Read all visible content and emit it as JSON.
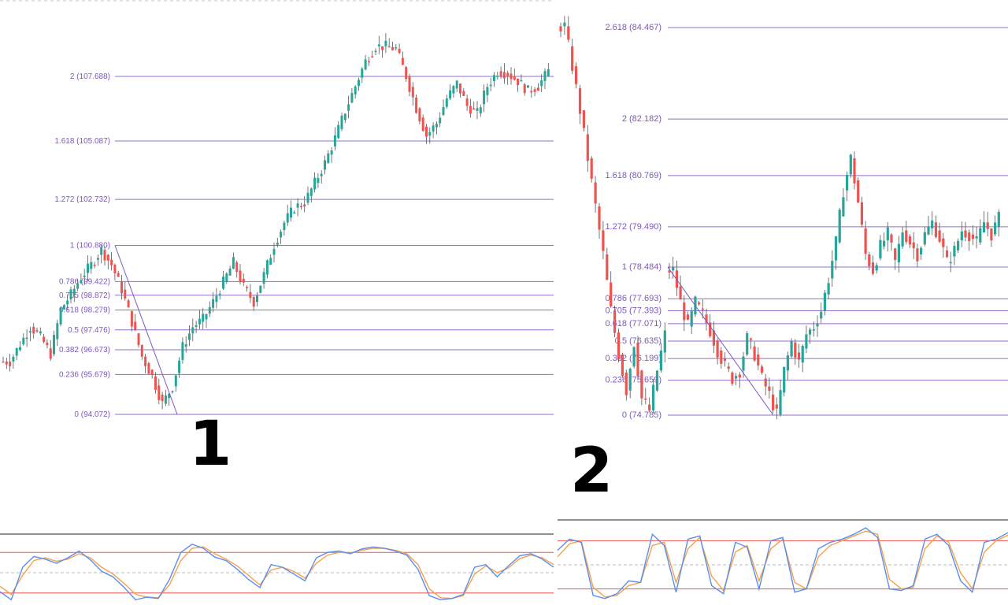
{
  "colors": {
    "up": "#26a69a",
    "down": "#ef5350",
    "fib_line": "#7e57c2",
    "stoch_k": "#5b8def",
    "stoch_d": "#f5a04a",
    "stoch_band": "#ef5350"
  },
  "chart_data": [
    {
      "type": "candlestick",
      "panel_label": "1",
      "fib_levels": [
        {
          "ratio": "2",
          "price": 107.688
        },
        {
          "ratio": "1.618",
          "price": 105.087
        },
        {
          "ratio": "1.272",
          "price": 102.732
        },
        {
          "ratio": "1",
          "price": 100.88
        },
        {
          "ratio": "0.786",
          "price": 99.422
        },
        {
          "ratio": "0.705",
          "price": 98.872
        },
        {
          "ratio": "0.618",
          "price": 98.279
        },
        {
          "ratio": "0.5",
          "price": 97.476
        },
        {
          "ratio": "0.382",
          "price": 96.673
        },
        {
          "ratio": "0.236",
          "price": 95.679
        },
        {
          "ratio": "0",
          "price": 94.072
        }
      ],
      "fib_labels": [
        "2 (107.688)",
        "1.618 (105.087)",
        "1.272 (102.732)",
        "1 (100.880)",
        "0.786 (99.422)",
        "0.705 (98.872)",
        "0.618 (98.279)",
        "0.5 (97.476)",
        "0.382 (96.673)",
        "0.236 (95.679)",
        "0 (94.072)"
      ],
      "swing": {
        "from_price": 100.88,
        "to_price": 94.072
      },
      "price_path": [
        96.2,
        96.9,
        97.6,
        97.2,
        96.5,
        98.3,
        98.9,
        99.6,
        100.1,
        100.7,
        100.1,
        99.1,
        97.8,
        96.4,
        95.6,
        94.5,
        95.2,
        96.8,
        97.6,
        97.9,
        98.6,
        99.4,
        100.2,
        99.2,
        98.6,
        99.7,
        100.9,
        101.8,
        102.4,
        102.6,
        103.4,
        104.2,
        105.2,
        106.3,
        107.3,
        108.3,
        108.9,
        108.9,
        108.8,
        107.7,
        106.4,
        105.3,
        105.8,
        106.8,
        107.4,
        106.5,
        106.2,
        107.3,
        107.9,
        107.8,
        107.5,
        107.1,
        107.3,
        107.9
      ]
    },
    {
      "type": "candlestick",
      "panel_label": "2",
      "fib_levels": [
        {
          "ratio": "2.618",
          "price": 84.467
        },
        {
          "ratio": "2",
          "price": 82.182
        },
        {
          "ratio": "1.618",
          "price": 80.769
        },
        {
          "ratio": "1.272",
          "price": 79.49
        },
        {
          "ratio": "1",
          "price": 78.484
        },
        {
          "ratio": "0.786",
          "price": 77.693
        },
        {
          "ratio": "0.705",
          "price": 77.393
        },
        {
          "ratio": "0.618",
          "price": 77.071
        },
        {
          "ratio": "0.5",
          "price": 76.635
        },
        {
          "ratio": "0.382",
          "price": 76.199
        },
        {
          "ratio": "0.236",
          "price": 75.659
        },
        {
          "ratio": "0",
          "price": 74.785
        }
      ],
      "fib_labels": [
        "2.618 (84.467)",
        "2 (82.182)",
        "1.618 (80.769)",
        "1.272 (79.490)",
        "1 (78.484)",
        "0.786 (77.693)",
        "0.705 (77.393)",
        "0.618 (77.071)",
        "0.5 (76.635)",
        "0.382 (76.199)",
        "0.236 (75.659)",
        "0 (74.785)"
      ],
      "swing": {
        "from_price": 78.484,
        "to_price": 74.785
      },
      "lead_in_path": [
        84.5,
        83.5,
        82.4,
        81.2,
        80.0,
        78.8,
        77.4,
        76.3,
        75.4,
        76.6,
        75.2,
        74.9,
        75.9,
        76.8
      ],
      "price_path": [
        78.4,
        77.6,
        77.0,
        77.6,
        77.3,
        76.9,
        76.4,
        76.0,
        75.7,
        75.9,
        76.7,
        76.3,
        75.7,
        75.3,
        74.8,
        75.9,
        76.6,
        76.1,
        76.8,
        77.0,
        77.4,
        78.2,
        79.1,
        80.4,
        81.2,
        80.1,
        78.8,
        78.4,
        79.0,
        79.3,
        78.6,
        79.4,
        79.1,
        78.8,
        79.3,
        79.6,
        79.2,
        78.6,
        78.9,
        79.4,
        79.3,
        79.1,
        79.6,
        79.3,
        79.7
      ]
    }
  ],
  "stochastic": [
    {
      "k": [
        22,
        10,
        58,
        74,
        70,
        64,
        72,
        82,
        69,
        52,
        44,
        28,
        10,
        14,
        12,
        40,
        80,
        92,
        86,
        73,
        68,
        55,
        40,
        28,
        62,
        58,
        48,
        38,
        72,
        80,
        82,
        78,
        85,
        88,
        86,
        82,
        76,
        55,
        16,
        10,
        12,
        18,
        58,
        62,
        44,
        60,
        75,
        78,
        70,
        58
      ],
      "d": [
        30,
        18,
        46,
        68,
        72,
        67,
        70,
        78,
        72,
        58,
        48,
        34,
        18,
        14,
        13,
        32,
        68,
        86,
        88,
        78,
        70,
        60,
        46,
        32,
        54,
        58,
        52,
        42,
        64,
        76,
        80,
        79,
        83,
        86,
        86,
        83,
        78,
        62,
        26,
        13,
        12,
        16,
        48,
        60,
        50,
        57,
        71,
        76,
        72,
        62
      ]
    },
    {
      "k": [
        68,
        82,
        78,
        12,
        8,
        14,
        30,
        28,
        88,
        74,
        16,
        82,
        86,
        24,
        14,
        78,
        72,
        20,
        80,
        84,
        16,
        20,
        70,
        78,
        82,
        88,
        96,
        84,
        20,
        18,
        24,
        82,
        88,
        74,
        30,
        16,
        78,
        82,
        90
      ],
      "d": [
        60,
        76,
        80,
        22,
        10,
        12,
        24,
        28,
        74,
        78,
        28,
        70,
        84,
        36,
        18,
        66,
        74,
        30,
        70,
        82,
        28,
        20,
        60,
        74,
        80,
        86,
        92,
        88,
        32,
        20,
        22,
        70,
        86,
        78,
        40,
        20,
        66,
        80,
        87
      ]
    }
  ],
  "labels": {
    "panel1": "1",
    "panel2": "2"
  }
}
